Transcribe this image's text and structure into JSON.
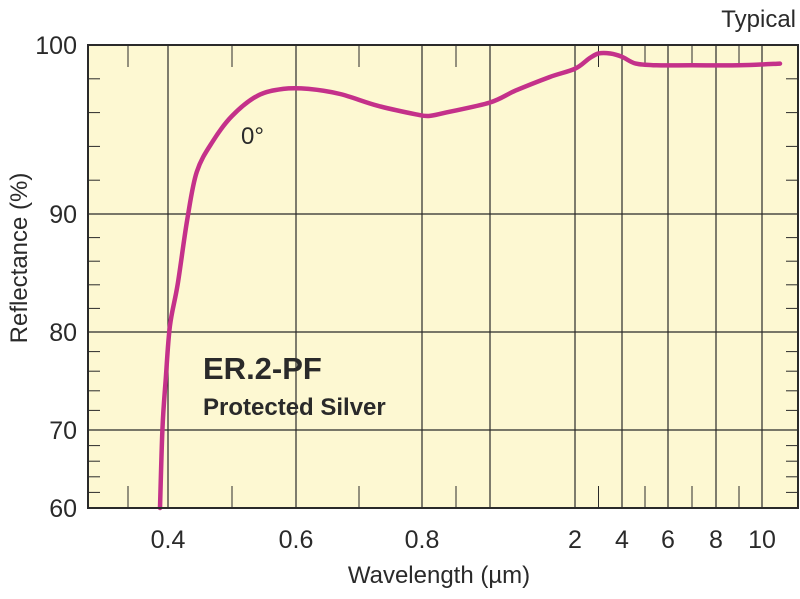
{
  "chart_data": {
    "type": "line",
    "annotation_corner": "Typical",
    "product_code": "ER.2-PF",
    "product_name": "Protected Silver",
    "xlabel": "Wavelength (µm)",
    "ylabel": "Reflectance (%)",
    "ylim": [
      60,
      100
    ],
    "y_ticks": [
      "60",
      "70",
      "80",
      "90",
      "100"
    ],
    "x_ticks": [
      "0.4",
      "0.6",
      "0.8",
      "2",
      "4",
      "6",
      "8",
      "10"
    ],
    "grid": true,
    "background_color": "#fdf8d2",
    "series": [
      {
        "name": "0°",
        "color": "#c4318a",
        "points": [
          {
            "x": 0.39,
            "y": 60.0
          },
          {
            "x": 0.393,
            "y": 70.0
          },
          {
            "x": 0.397,
            "y": 75.0
          },
          {
            "x": 0.403,
            "y": 80.5
          },
          {
            "x": 0.415,
            "y": 84.0
          },
          {
            "x": 0.43,
            "y": 89.5
          },
          {
            "x": 0.445,
            "y": 92.5
          },
          {
            "x": 0.47,
            "y": 94.3
          },
          {
            "x": 0.5,
            "y": 95.8
          },
          {
            "x": 0.54,
            "y": 97.0
          },
          {
            "x": 0.58,
            "y": 97.4
          },
          {
            "x": 0.62,
            "y": 97.4
          },
          {
            "x": 0.67,
            "y": 97.1
          },
          {
            "x": 0.73,
            "y": 96.4
          },
          {
            "x": 0.79,
            "y": 95.9
          },
          {
            "x": 0.82,
            "y": 95.8
          },
          {
            "x": 0.87,
            "y": 96.0
          },
          {
            "x": 1.0,
            "y": 96.6
          },
          {
            "x": 1.3,
            "y": 97.3
          },
          {
            "x": 1.7,
            "y": 98.1
          },
          {
            "x": 2.0,
            "y": 98.6
          },
          {
            "x": 2.6,
            "y": 99.2
          },
          {
            "x": 3.0,
            "y": 99.5
          },
          {
            "x": 3.5,
            "y": 99.5
          },
          {
            "x": 4.0,
            "y": 99.3
          },
          {
            "x": 4.6,
            "y": 98.9
          },
          {
            "x": 5.5,
            "y": 98.8
          },
          {
            "x": 7.0,
            "y": 98.8
          },
          {
            "x": 9.0,
            "y": 98.8
          },
          {
            "x": 11.0,
            "y": 98.9
          }
        ]
      }
    ]
  }
}
